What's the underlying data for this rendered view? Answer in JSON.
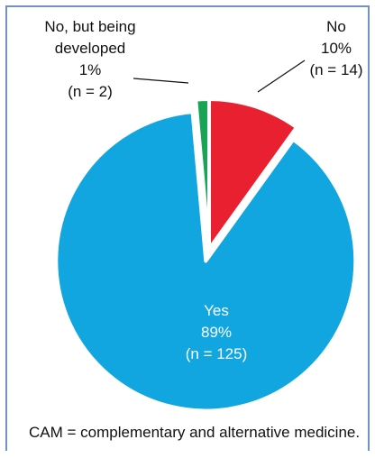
{
  "chart_data": {
    "type": "pie",
    "start_angle_deg": 0,
    "direction": "clockwise",
    "slices": [
      {
        "label": "No",
        "percent_text": "10%",
        "n_text": "(n = 14)",
        "n": 14,
        "color": "#e8202f",
        "exploded": false
      },
      {
        "label": "Yes",
        "percent_text": "89%",
        "n_text": "(n = 125)",
        "n": 125,
        "color": "#11a6e0",
        "exploded": true
      },
      {
        "label": "No, but being developed",
        "label_lines": [
          "No, but being",
          "developed"
        ],
        "percent_text": "1%",
        "n_text": "(n = 2)",
        "n": 2,
        "color": "#1aa556",
        "exploded": false
      }
    ]
  },
  "footnote": "CAM = complementary and alternative medicine."
}
